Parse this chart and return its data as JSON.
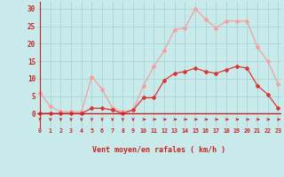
{
  "x": [
    0,
    1,
    2,
    3,
    4,
    5,
    6,
    7,
    8,
    9,
    10,
    11,
    12,
    13,
    14,
    15,
    16,
    17,
    18,
    19,
    20,
    21,
    22,
    23
  ],
  "wind_avg": [
    0,
    0,
    0,
    0,
    0,
    1.5,
    1.5,
    1,
    0,
    1,
    4.5,
    4.5,
    9.5,
    11.5,
    12,
    13,
    12,
    11.5,
    12.5,
    13.5,
    13,
    8,
    5.5,
    1.5
  ],
  "wind_gust": [
    6,
    2,
    0.5,
    0.5,
    0.5,
    10.5,
    7,
    1.5,
    0.5,
    1,
    8,
    13.5,
    18,
    24,
    24.5,
    30,
    27,
    24.5,
    26.5,
    26.5,
    26.5,
    19,
    15,
    8.5
  ],
  "avg_color": "#dd3333",
  "gust_color": "#f4a0a0",
  "bg_color": "#c8eaea",
  "grid_color": "#aad4d4",
  "axis_color": "#cc2222",
  "xlabel": "Vent moyen/en rafales ( km/h )",
  "ylabel_ticks": [
    0,
    5,
    10,
    15,
    20,
    25,
    30
  ],
  "xlim": [
    -0.3,
    23.3
  ],
  "ylim": [
    -4,
    32
  ],
  "ymin_data": 0,
  "ymax_data": 30,
  "arrow_down_hours": [
    0,
    1,
    2,
    3,
    4,
    5,
    6,
    7,
    8,
    9
  ],
  "arrow_right_hours": [
    10,
    11,
    12,
    13,
    14,
    15,
    16,
    17,
    18,
    19,
    20,
    21,
    22,
    23
  ]
}
